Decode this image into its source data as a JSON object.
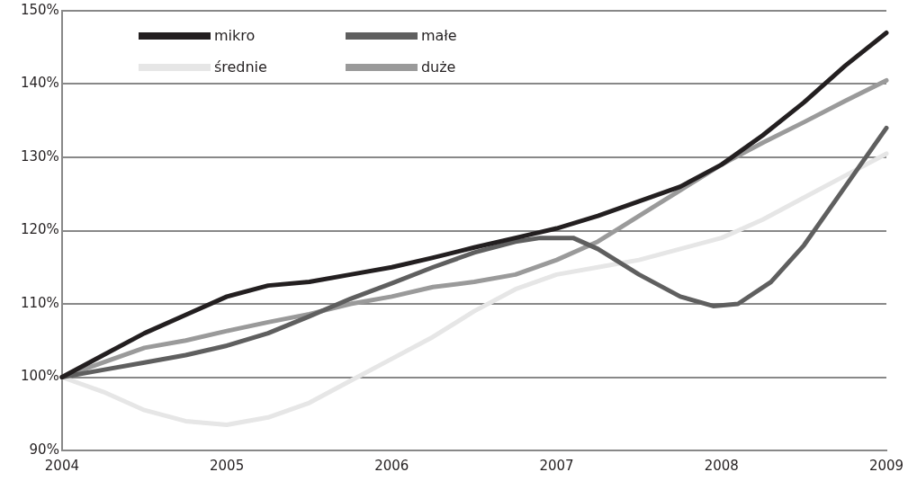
{
  "chart_data": {
    "type": "line",
    "legend": "top left",
    "grid": "y",
    "marker": "none",
    "line_style": "solid",
    "xlim": [
      2004,
      2009
    ],
    "xticks": [
      2004,
      2005,
      2006,
      2007,
      2008,
      2009
    ],
    "ylim": [
      90,
      150
    ],
    "yticks": [
      {
        "value": 90,
        "label": "90%"
      },
      {
        "value": 100,
        "label": "100%"
      },
      {
        "value": 110,
        "label": "110%"
      },
      {
        "value": 120,
        "label": "120%"
      },
      {
        "value": 130,
        "label": "130%"
      },
      {
        "value": 140,
        "label": "140%"
      },
      {
        "value": 150,
        "label": "150%"
      }
    ],
    "series": [
      {
        "name": "mikro",
        "color": "#231f20",
        "x": [
          2004,
          2004.25,
          2004.5,
          2004.75,
          2005,
          2005.25,
          2005.5,
          2005.75,
          2006,
          2006.25,
          2006.5,
          2006.75,
          2007,
          2007.25,
          2007.5,
          2007.75,
          2008,
          2008.25,
          2008.5,
          2008.75,
          2009
        ],
        "values": [
          100,
          103,
          106,
          108.5,
          111,
          112.5,
          113,
          114,
          115,
          116.3,
          117.7,
          119,
          120.3,
          122,
          124,
          126,
          129,
          133,
          137.5,
          142.5,
          147
        ]
      },
      {
        "name": "małe",
        "color": "#5f5f5f",
        "x": [
          2004,
          2004.25,
          2004.5,
          2004.75,
          2005,
          2005.25,
          2005.5,
          2005.75,
          2006,
          2006.25,
          2006.5,
          2006.75,
          2006.9,
          2007.1,
          2007.25,
          2007.5,
          2007.75,
          2007.95,
          2008.1,
          2008.3,
          2008.5,
          2008.75,
          2009
        ],
        "values": [
          100,
          101,
          102,
          103,
          104.3,
          106,
          108.3,
          110.7,
          112.8,
          115,
          117,
          118.5,
          119,
          119,
          117.5,
          114,
          111,
          109.7,
          110,
          113,
          118,
          126,
          134
        ]
      },
      {
        "name": "średnie",
        "color": "#e6e6e6",
        "x": [
          2004,
          2004.25,
          2004.5,
          2004.75,
          2005,
          2005.25,
          2005.5,
          2005.75,
          2006,
          2006.25,
          2006.5,
          2006.75,
          2007,
          2007.25,
          2007.5,
          2007.75,
          2008,
          2008.25,
          2008.5,
          2008.75,
          2009
        ],
        "values": [
          100,
          98,
          95.5,
          94,
          93.5,
          94.5,
          96.5,
          99.5,
          102.5,
          105.5,
          109,
          112,
          114,
          115,
          116,
          117.5,
          119,
          121.5,
          124.5,
          127.5,
          130.5
        ]
      },
      {
        "name": "duże",
        "color": "#9a9a9a",
        "x": [
          2004,
          2004.25,
          2004.5,
          2004.75,
          2005,
          2005.25,
          2005.5,
          2005.75,
          2006,
          2006.25,
          2006.5,
          2006.75,
          2007,
          2007.25,
          2007.5,
          2007.75,
          2008,
          2008.25,
          2008.5,
          2008.75,
          2009
        ],
        "values": [
          100,
          102,
          104,
          105,
          106.3,
          107.5,
          108.6,
          110,
          111,
          112.3,
          113,
          114,
          116,
          118.5,
          122,
          125.5,
          129,
          132,
          134.8,
          137.7,
          140.5
        ]
      }
    ]
  }
}
